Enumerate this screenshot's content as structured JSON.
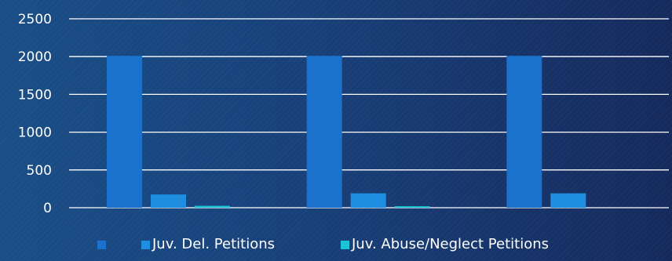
{
  "chart_data": {
    "type": "bar",
    "categories": [
      "",
      "",
      ""
    ],
    "series": [
      {
        "name": "",
        "values": [
          2010,
          2010,
          2010
        ],
        "color": "#1a72cc"
      },
      {
        "name": "Juv. Del. Petitions",
        "values": [
          175,
          190,
          190
        ],
        "color": "#1e8fe0"
      },
      {
        "name": "Juv. Abuse/Neglect Petitions",
        "values": [
          25,
          20,
          0
        ],
        "color": "#1bc3d6"
      }
    ],
    "yticks": [
      "0",
      "500",
      "1000",
      "1500",
      "2000",
      "2500"
    ],
    "ylim": [
      0,
      2500
    ],
    "grid": true,
    "legend": "bottom",
    "title": "",
    "xlabel": "",
    "ylabel": ""
  }
}
